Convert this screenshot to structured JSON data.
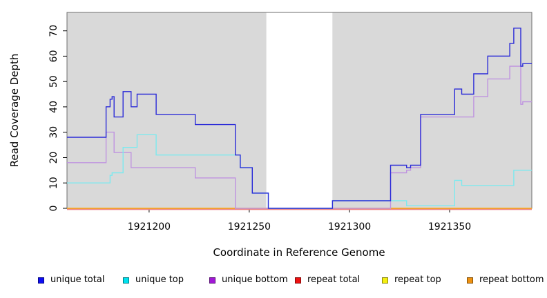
{
  "chart_data": {
    "type": "line",
    "title": "",
    "xlabel": "Coordinate in Reference Genome",
    "ylabel": "Read Coverage Depth",
    "xlim": [
      1921159,
      1921391
    ],
    "ylim": [
      0,
      77.2
    ],
    "grid": false,
    "legend_position": "bottom",
    "plot_bg": "#d9d9d9",
    "figure_bg": "#ffffff",
    "xticks": [
      1921200,
      1921250,
      1921300,
      1921350
    ],
    "yticks": [
      0,
      10,
      20,
      30,
      40,
      50,
      60,
      70
    ],
    "xtick_labels": [
      "1921200",
      "1921250",
      "1921300",
      "1921350"
    ],
    "ytick_labels": [
      "0",
      "10",
      "20",
      "30",
      "40",
      "50",
      "60",
      "70"
    ],
    "gap": {
      "x1": 1921258.5,
      "x2": 1921291.5,
      "fill": "#ffffff",
      "note": "white band where total coverage is zero"
    },
    "draw_order": [
      4,
      3,
      5,
      2,
      1,
      0
    ],
    "series": [
      {
        "name": "unique total",
        "swatch_color": "#0d0df2",
        "line_color": "#2b2bd8",
        "steps": [
          [
            1921159,
            28
          ],
          [
            1921178.5,
            40
          ],
          [
            1921180.5,
            43
          ],
          [
            1921181.5,
            44
          ],
          [
            1921182.5,
            36
          ],
          [
            1921187,
            46
          ],
          [
            1921191,
            40
          ],
          [
            1921194,
            45
          ],
          [
            1921203.5,
            37
          ],
          [
            1921223,
            33
          ],
          [
            1921243,
            21
          ],
          [
            1921245.5,
            16
          ],
          [
            1921251.5,
            6
          ],
          [
            1921259.5,
            0
          ],
          [
            1921291.5,
            3
          ],
          [
            1921320.5,
            17
          ],
          [
            1921328.5,
            16
          ],
          [
            1921330.5,
            17
          ],
          [
            1921335.5,
            37
          ],
          [
            1921352.5,
            47
          ],
          [
            1921356,
            45
          ],
          [
            1921362,
            53
          ],
          [
            1921369,
            60
          ],
          [
            1921380,
            65
          ],
          [
            1921382,
            71
          ],
          [
            1921385.5,
            56
          ],
          [
            1921386.5,
            57
          ]
        ]
      },
      {
        "name": "unique top",
        "swatch_color": "#00e2ef",
        "line_color": "#7de9ee",
        "steps": [
          [
            1921159,
            10
          ],
          [
            1921180.5,
            13
          ],
          [
            1921181.5,
            14
          ],
          [
            1921187,
            24
          ],
          [
            1921194,
            29
          ],
          [
            1921203.5,
            21
          ],
          [
            1921245.5,
            16
          ],
          [
            1921251.5,
            6
          ],
          [
            1921259.5,
            0
          ],
          [
            1921291.5,
            3
          ],
          [
            1921328.5,
            1
          ],
          [
            1921352.5,
            11
          ],
          [
            1921356,
            9
          ],
          [
            1921382,
            15
          ]
        ]
      },
      {
        "name": "unique bottom",
        "swatch_color": "#a118d6",
        "line_color": "#bf93e0",
        "steps": [
          [
            1921159,
            18
          ],
          [
            1921178.5,
            30
          ],
          [
            1921182.5,
            22
          ],
          [
            1921191,
            16
          ],
          [
            1921223,
            12
          ],
          [
            1921243,
            0
          ],
          [
            1921320.5,
            14
          ],
          [
            1921328.5,
            15
          ],
          [
            1921330.5,
            16
          ],
          [
            1921335.5,
            36
          ],
          [
            1921362,
            44
          ],
          [
            1921369,
            51
          ],
          [
            1921380,
            56
          ],
          [
            1921385.5,
            41
          ],
          [
            1921386.5,
            42
          ]
        ]
      },
      {
        "name": "repeat total",
        "swatch_color": "#ee1111",
        "line_color": "#ec8383",
        "stroke_width": 2.4,
        "y_offset": 1.2,
        "steps": [
          [
            1921159,
            0
          ]
        ]
      },
      {
        "name": "repeat top",
        "swatch_color": "#f4ef12",
        "line_color": "#f4ef12",
        "steps": [
          [
            1921159,
            0
          ]
        ]
      },
      {
        "name": "repeat bottom",
        "swatch_color": "#ee9211",
        "line_color": "#f6a21c",
        "steps": [
          [
            1921159,
            0
          ]
        ]
      }
    ]
  },
  "legend": {
    "items": [
      {
        "label": "unique total",
        "swatch_color": "#0d0df2"
      },
      {
        "label": "unique top",
        "swatch_color": "#00e2ef"
      },
      {
        "label": "unique bottom",
        "swatch_color": "#a118d6"
      },
      {
        "label": "repeat total",
        "swatch_color": "#ee1111"
      },
      {
        "label": "repeat top",
        "swatch_color": "#f4ef12"
      },
      {
        "label": "repeat bottom",
        "swatch_color": "#ee9211"
      }
    ]
  }
}
